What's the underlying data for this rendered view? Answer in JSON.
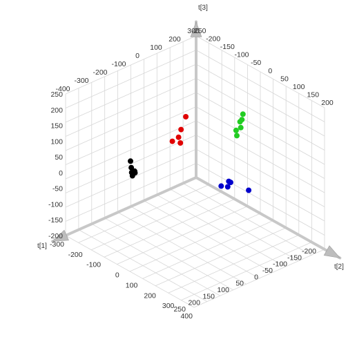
{
  "chart_data": {
    "type": "scatter",
    "title": "",
    "grid": true,
    "axes": {
      "x": {
        "label": "t[1]",
        "ticks": [
          "-200",
          "-150",
          "-100",
          "-50",
          "0",
          "50",
          "100",
          "150",
          "200",
          "250"
        ],
        "range": [
          -200,
          250
        ]
      },
      "y": {
        "label": "t[2]",
        "ticks": [
          "-300",
          "-200",
          "-100",
          "0",
          "100",
          "200",
          "300",
          "400"
        ],
        "range": [
          -300,
          400
        ]
      },
      "z": {
        "label": "t[3]",
        "ticks": [
          "-200",
          "-150",
          "-100",
          "-50",
          "0",
          "50",
          "100",
          "150",
          "200",
          "250"
        ],
        "range": [
          -200,
          250
        ]
      }
    },
    "back_wall_ticks": {
      "left": [
        "300",
        "200",
        "100",
        "0",
        "-100",
        "-200",
        "-300",
        "-400"
      ],
      "right": [
        "-250",
        "-200",
        "-150",
        "-100",
        "-50",
        "0",
        "50",
        "100",
        "150",
        "200"
      ]
    },
    "series": [
      {
        "color": "#e00000",
        "points": [
          {
            "x": 0,
            "y": -40,
            "z": 160
          },
          {
            "x": 10,
            "y": -50,
            "z": 120
          },
          {
            "x": 25,
            "y": -40,
            "z": 105
          },
          {
            "x": 25,
            "y": -30,
            "z": 90
          },
          {
            "x": 40,
            "y": -50,
            "z": 95
          }
        ]
      },
      {
        "color": "#22cc22",
        "points": [
          {
            "x": -140,
            "y": 50,
            "z": 140
          },
          {
            "x": -130,
            "y": 60,
            "z": 130
          },
          {
            "x": -130,
            "y": 50,
            "z": 120
          },
          {
            "x": -120,
            "y": 70,
            "z": 112
          },
          {
            "x": -110,
            "y": 60,
            "z": 104
          },
          {
            "x": -100,
            "y": 80,
            "z": 98
          }
        ]
      },
      {
        "color": "#000000",
        "points": [
          {
            "x": 140,
            "y": -120,
            "z": 50
          },
          {
            "x": 150,
            "y": -100,
            "z": 40
          },
          {
            "x": 155,
            "y": -90,
            "z": 30
          },
          {
            "x": 145,
            "y": -90,
            "z": 30
          },
          {
            "x": 150,
            "y": -80,
            "z": 30
          },
          {
            "x": 165,
            "y": -70,
            "z": 30
          }
        ]
      },
      {
        "color": "#0000cc",
        "points": [
          {
            "x": 30,
            "y": 200,
            "z": 30
          },
          {
            "x": 10,
            "y": 210,
            "z": 40
          },
          {
            "x": 10,
            "y": 220,
            "z": 40
          },
          {
            "x": 20,
            "y": 220,
            "z": 30
          },
          {
            "x": -30,
            "y": 255,
            "z": 10
          }
        ]
      }
    ]
  }
}
